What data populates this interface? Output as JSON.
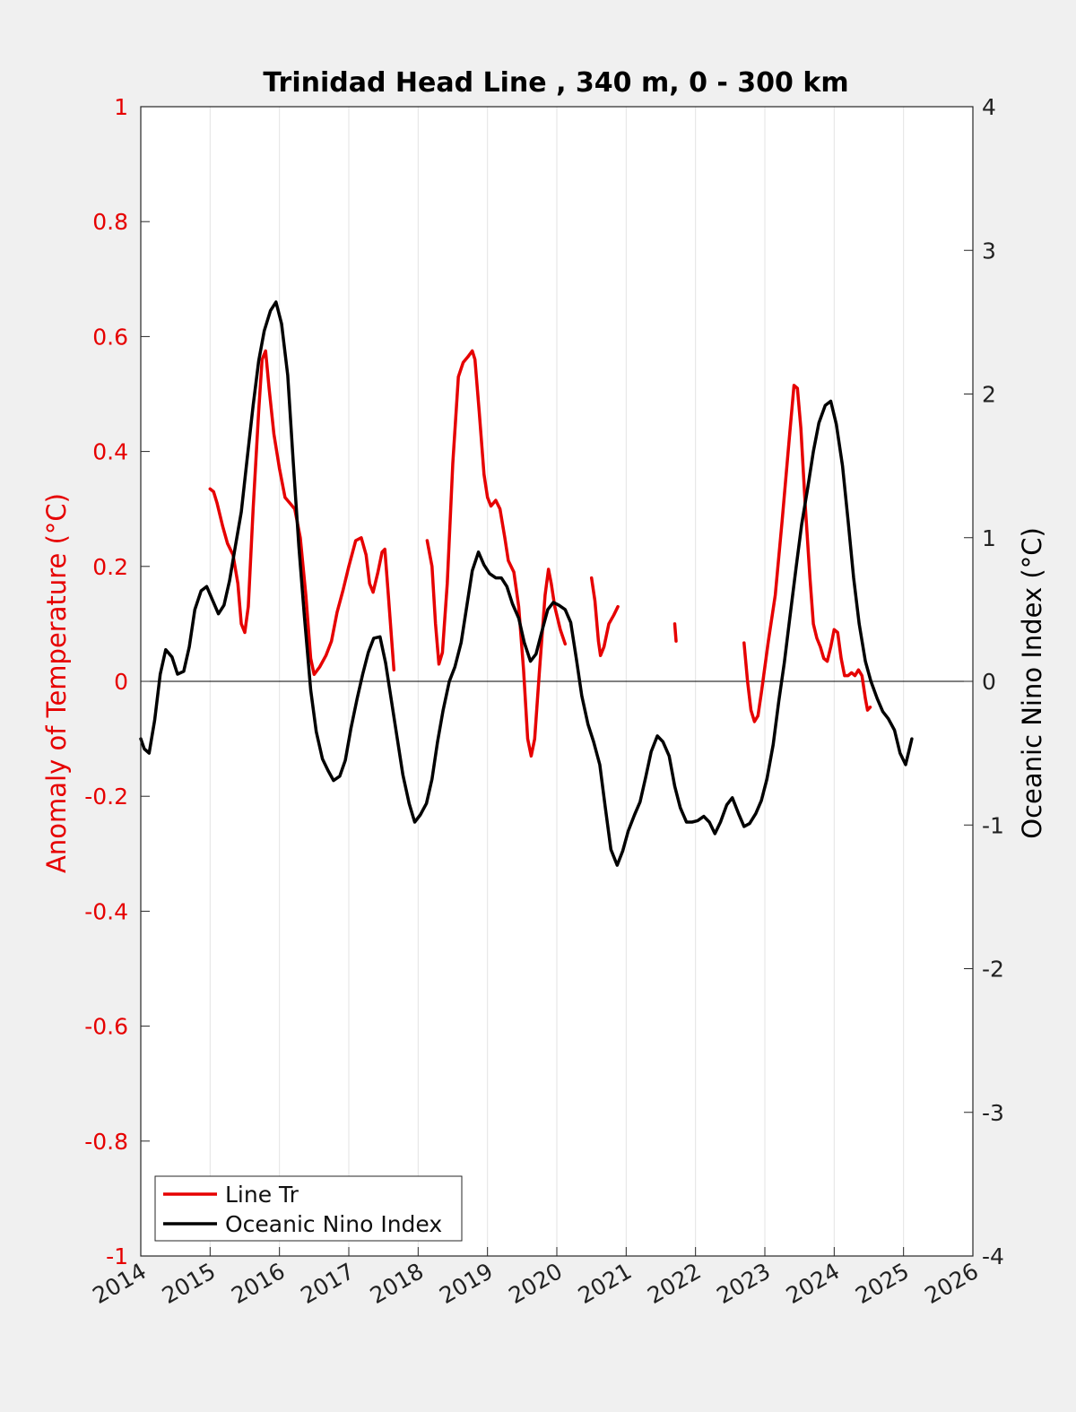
{
  "chart_data": {
    "type": "line",
    "title": "Trinidad Head Line , 340 m, 0 - 300 km",
    "ylabel_left": "Anomaly of Temperature (°C)",
    "ylabel_right": "Oceanic Nino Index (°C)",
    "xlim": [
      2014,
      2026
    ],
    "ylim_left": [
      -1,
      1
    ],
    "ylim_right": [
      -4,
      4
    ],
    "x_ticks": [
      "2014",
      "2015",
      "2016",
      "2017",
      "2018",
      "2019",
      "2020",
      "2021",
      "2022",
      "2023",
      "2024",
      "2025",
      "2026"
    ],
    "y_ticks_left": [
      "1",
      "0.8",
      "0.6",
      "0.4",
      "0.2",
      "0",
      "-0.2",
      "-0.4",
      "-0.6",
      "-0.8",
      "-1"
    ],
    "y_ticks_right": [
      "4",
      "3",
      "2",
      "1",
      "0",
      "-1",
      "-2",
      "-3",
      "-4"
    ],
    "vertical_grid": true,
    "zero_line": true,
    "legend_position": "bottom-left",
    "colors": {
      "line_tr": "#e60000",
      "oni": "#000000",
      "left_axis": "#e60000",
      "right_axis": "#000000"
    },
    "series": [
      {
        "name": "Line Tr",
        "axis": "left",
        "segments": [
          [
            [
              2015.0,
              0.335
            ],
            [
              2015.05,
              0.33
            ],
            [
              2015.1,
              0.31
            ],
            [
              2015.18,
              0.27
            ],
            [
              2015.25,
              0.24
            ],
            [
              2015.33,
              0.22
            ],
            [
              2015.4,
              0.17
            ],
            [
              2015.45,
              0.1
            ],
            [
              2015.5,
              0.085
            ],
            [
              2015.55,
              0.13
            ],
            [
              2015.62,
              0.3
            ],
            [
              2015.7,
              0.47
            ],
            [
              2015.75,
              0.56
            ],
            [
              2015.8,
              0.575
            ],
            [
              2015.85,
              0.51
            ],
            [
              2015.92,
              0.43
            ],
            [
              2016.0,
              0.37
            ],
            [
              2016.08,
              0.32
            ],
            [
              2016.15,
              0.31
            ],
            [
              2016.22,
              0.3
            ],
            [
              2016.3,
              0.25
            ],
            [
              2016.38,
              0.15
            ],
            [
              2016.45,
              0.04
            ],
            [
              2016.5,
              0.012
            ],
            [
              2016.58,
              0.025
            ],
            [
              2016.67,
              0.045
            ],
            [
              2016.75,
              0.07
            ],
            [
              2016.83,
              0.12
            ],
            [
              2016.92,
              0.16
            ],
            [
              2017.0,
              0.2
            ],
            [
              2017.1,
              0.245
            ],
            [
              2017.18,
              0.25
            ],
            [
              2017.25,
              0.22
            ],
            [
              2017.3,
              0.17
            ],
            [
              2017.35,
              0.155
            ],
            [
              2017.42,
              0.19
            ],
            [
              2017.48,
              0.225
            ],
            [
              2017.52,
              0.23
            ],
            [
              2017.57,
              0.15
            ],
            [
              2017.62,
              0.07
            ],
            [
              2017.65,
              0.02
            ]
          ],
          [
            [
              2018.13,
              0.245
            ],
            [
              2018.2,
              0.2
            ],
            [
              2018.25,
              0.1
            ],
            [
              2018.3,
              0.03
            ],
            [
              2018.35,
              0.05
            ],
            [
              2018.42,
              0.17
            ],
            [
              2018.5,
              0.38
            ],
            [
              2018.58,
              0.53
            ],
            [
              2018.65,
              0.555
            ],
            [
              2018.72,
              0.565
            ],
            [
              2018.78,
              0.575
            ],
            [
              2018.82,
              0.56
            ],
            [
              2018.88,
              0.47
            ],
            [
              2018.95,
              0.36
            ],
            [
              2019.0,
              0.32
            ],
            [
              2019.05,
              0.305
            ],
            [
              2019.12,
              0.315
            ],
            [
              2019.18,
              0.3
            ],
            [
              2019.25,
              0.25
            ],
            [
              2019.3,
              0.21
            ],
            [
              2019.38,
              0.19
            ],
            [
              2019.45,
              0.13
            ],
            [
              2019.52,
              0.02
            ],
            [
              2019.58,
              -0.1
            ],
            [
              2019.63,
              -0.13
            ],
            [
              2019.68,
              -0.1
            ],
            [
              2019.75,
              0.02
            ],
            [
              2019.83,
              0.15
            ],
            [
              2019.88,
              0.195
            ],
            [
              2019.92,
              0.17
            ],
            [
              2019.97,
              0.13
            ],
            [
              2020.05,
              0.09
            ],
            [
              2020.12,
              0.065
            ]
          ],
          [
            [
              2020.5,
              0.18
            ],
            [
              2020.55,
              0.14
            ],
            [
              2020.6,
              0.07
            ],
            [
              2020.63,
              0.045
            ],
            [
              2020.68,
              0.06
            ],
            [
              2020.75,
              0.1
            ],
            [
              2020.82,
              0.115
            ],
            [
              2020.88,
              0.13
            ]
          ],
          [
            [
              2021.7,
              0.1
            ],
            [
              2021.72,
              0.07
            ]
          ],
          [
            [
              2022.7,
              0.067
            ],
            [
              2022.75,
              0.0
            ],
            [
              2022.8,
              -0.05
            ],
            [
              2022.85,
              -0.07
            ],
            [
              2022.9,
              -0.06
            ],
            [
              2022.95,
              -0.02
            ],
            [
              2023.05,
              0.07
            ],
            [
              2023.15,
              0.15
            ],
            [
              2023.25,
              0.28
            ],
            [
              2023.35,
              0.42
            ],
            [
              2023.42,
              0.515
            ],
            [
              2023.47,
              0.51
            ],
            [
              2023.52,
              0.44
            ],
            [
              2023.58,
              0.31
            ],
            [
              2023.65,
              0.18
            ],
            [
              2023.7,
              0.1
            ],
            [
              2023.75,
              0.075
            ],
            [
              2023.8,
              0.06
            ],
            [
              2023.85,
              0.04
            ],
            [
              2023.9,
              0.035
            ],
            [
              2023.95,
              0.06
            ],
            [
              2024.0,
              0.09
            ],
            [
              2024.05,
              0.085
            ],
            [
              2024.1,
              0.04
            ],
            [
              2024.15,
              0.01
            ],
            [
              2024.2,
              0.01
            ],
            [
              2024.25,
              0.015
            ],
            [
              2024.3,
              0.01
            ],
            [
              2024.35,
              0.02
            ],
            [
              2024.4,
              0.01
            ],
            [
              2024.45,
              -0.03
            ],
            [
              2024.48,
              -0.05
            ],
            [
              2024.52,
              -0.045
            ]
          ]
        ]
      },
      {
        "name": "Oceanic Nino Index",
        "axis": "right",
        "segments": [
          [
            [
              2014.0,
              -0.4
            ],
            [
              2014.05,
              -0.47
            ],
            [
              2014.12,
              -0.5
            ],
            [
              2014.2,
              -0.27
            ],
            [
              2014.28,
              0.05
            ],
            [
              2014.36,
              0.22
            ],
            [
              2014.45,
              0.17
            ],
            [
              2014.53,
              0.05
            ],
            [
              2014.62,
              0.07
            ],
            [
              2014.7,
              0.24
            ],
            [
              2014.78,
              0.5
            ],
            [
              2014.87,
              0.63
            ],
            [
              2014.95,
              0.66
            ],
            [
              2015.03,
              0.57
            ],
            [
              2015.12,
              0.47
            ],
            [
              2015.2,
              0.53
            ],
            [
              2015.28,
              0.7
            ],
            [
              2015.36,
              0.93
            ],
            [
              2015.45,
              1.18
            ],
            [
              2015.53,
              1.53
            ],
            [
              2015.62,
              1.92
            ],
            [
              2015.7,
              2.23
            ],
            [
              2015.78,
              2.44
            ],
            [
              2015.87,
              2.58
            ],
            [
              2015.95,
              2.64
            ],
            [
              2016.03,
              2.49
            ],
            [
              2016.12,
              2.13
            ],
            [
              2016.2,
              1.52
            ],
            [
              2016.28,
              0.94
            ],
            [
              2016.36,
              0.45
            ],
            [
              2016.45,
              -0.06
            ],
            [
              2016.53,
              -0.35
            ],
            [
              2016.62,
              -0.54
            ],
            [
              2016.7,
              -0.62
            ],
            [
              2016.78,
              -0.69
            ],
            [
              2016.87,
              -0.66
            ],
            [
              2016.95,
              -0.55
            ],
            [
              2017.03,
              -0.33
            ],
            [
              2017.12,
              -0.12
            ],
            [
              2017.2,
              0.05
            ],
            [
              2017.28,
              0.2
            ],
            [
              2017.36,
              0.3
            ],
            [
              2017.45,
              0.31
            ],
            [
              2017.53,
              0.13
            ],
            [
              2017.62,
              -0.15
            ],
            [
              2017.7,
              -0.4
            ],
            [
              2017.78,
              -0.65
            ],
            [
              2017.87,
              -0.85
            ],
            [
              2017.95,
              -0.98
            ],
            [
              2018.03,
              -0.93
            ],
            [
              2018.12,
              -0.85
            ],
            [
              2018.2,
              -0.68
            ],
            [
              2018.28,
              -0.42
            ],
            [
              2018.36,
              -0.2
            ],
            [
              2018.45,
              0.0
            ],
            [
              2018.53,
              0.1
            ],
            [
              2018.62,
              0.27
            ],
            [
              2018.7,
              0.52
            ],
            [
              2018.78,
              0.77
            ],
            [
              2018.87,
              0.9
            ],
            [
              2018.95,
              0.81
            ],
            [
              2019.03,
              0.75
            ],
            [
              2019.12,
              0.72
            ],
            [
              2019.2,
              0.72
            ],
            [
              2019.28,
              0.66
            ],
            [
              2019.36,
              0.54
            ],
            [
              2019.45,
              0.44
            ],
            [
              2019.53,
              0.27
            ],
            [
              2019.62,
              0.14
            ],
            [
              2019.7,
              0.19
            ],
            [
              2019.78,
              0.34
            ],
            [
              2019.87,
              0.5
            ],
            [
              2019.95,
              0.55
            ],
            [
              2020.03,
              0.53
            ],
            [
              2020.12,
              0.5
            ],
            [
              2020.2,
              0.41
            ],
            [
              2020.28,
              0.16
            ],
            [
              2020.36,
              -0.1
            ],
            [
              2020.45,
              -0.3
            ],
            [
              2020.53,
              -0.42
            ],
            [
              2020.62,
              -0.58
            ],
            [
              2020.7,
              -0.88
            ],
            [
              2020.78,
              -1.17
            ],
            [
              2020.87,
              -1.28
            ],
            [
              2020.95,
              -1.18
            ],
            [
              2021.03,
              -1.04
            ],
            [
              2021.12,
              -0.93
            ],
            [
              2021.2,
              -0.84
            ],
            [
              2021.28,
              -0.67
            ],
            [
              2021.36,
              -0.49
            ],
            [
              2021.45,
              -0.38
            ],
            [
              2021.53,
              -0.42
            ],
            [
              2021.62,
              -0.52
            ],
            [
              2021.7,
              -0.73
            ],
            [
              2021.78,
              -0.88
            ],
            [
              2021.87,
              -0.98
            ],
            [
              2021.95,
              -0.98
            ],
            [
              2022.03,
              -0.97
            ],
            [
              2022.12,
              -0.94
            ],
            [
              2022.2,
              -0.98
            ],
            [
              2022.28,
              -1.06
            ],
            [
              2022.36,
              -0.98
            ],
            [
              2022.45,
              -0.86
            ],
            [
              2022.53,
              -0.81
            ],
            [
              2022.62,
              -0.92
            ],
            [
              2022.7,
              -1.01
            ],
            [
              2022.78,
              -0.99
            ],
            [
              2022.87,
              -0.92
            ],
            [
              2022.95,
              -0.83
            ],
            [
              2023.03,
              -0.68
            ],
            [
              2023.12,
              -0.44
            ],
            [
              2023.2,
              -0.14
            ],
            [
              2023.28,
              0.13
            ],
            [
              2023.36,
              0.44
            ],
            [
              2023.45,
              0.79
            ],
            [
              2023.53,
              1.09
            ],
            [
              2023.62,
              1.35
            ],
            [
              2023.7,
              1.6
            ],
            [
              2023.78,
              1.8
            ],
            [
              2023.87,
              1.92
            ],
            [
              2023.95,
              1.95
            ],
            [
              2024.03,
              1.79
            ],
            [
              2024.12,
              1.5
            ],
            [
              2024.2,
              1.12
            ],
            [
              2024.28,
              0.72
            ],
            [
              2024.36,
              0.4
            ],
            [
              2024.45,
              0.14
            ],
            [
              2024.53,
              0.0
            ],
            [
              2024.62,
              -0.12
            ],
            [
              2024.7,
              -0.21
            ],
            [
              2024.78,
              -0.26
            ],
            [
              2024.87,
              -0.34
            ],
            [
              2024.95,
              -0.5
            ],
            [
              2025.03,
              -0.58
            ],
            [
              2025.12,
              -0.4
            ]
          ]
        ]
      }
    ]
  }
}
